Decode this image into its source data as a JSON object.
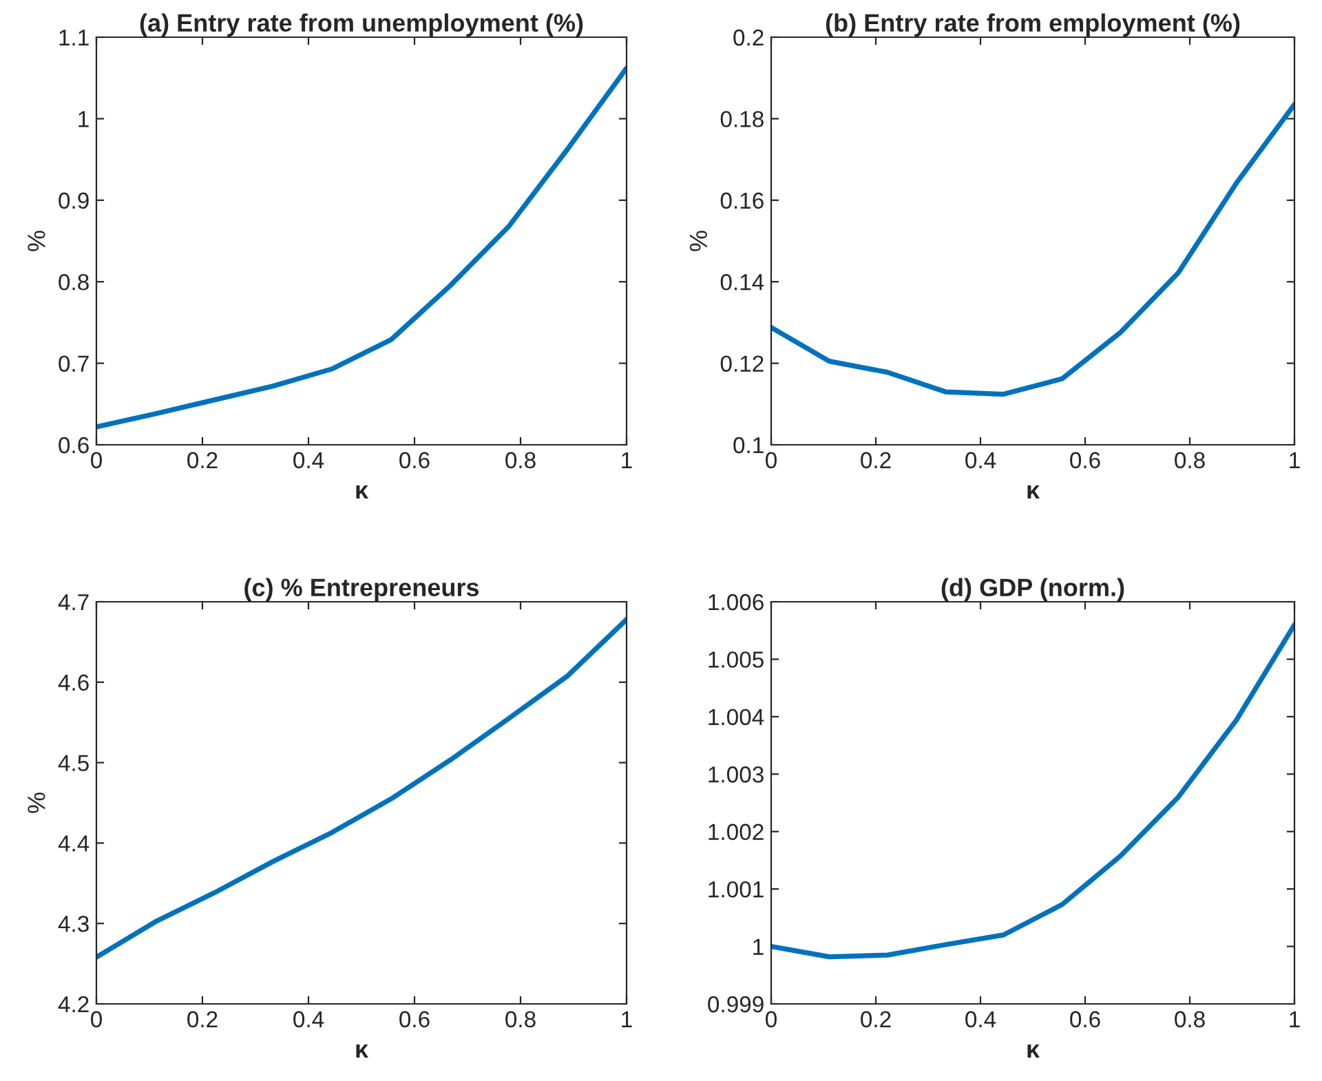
{
  "chart_data": [
    {
      "type": "line",
      "title": "(a) Entry rate from unemployment (%)",
      "xlabel": "κ",
      "ylabel": "%",
      "x": [
        0,
        0.111,
        0.222,
        0.333,
        0.444,
        0.556,
        0.667,
        0.778,
        0.889,
        1
      ],
      "xlim": [
        0,
        1
      ],
      "xticks": [
        0,
        0.2,
        0.4,
        0.6,
        0.8,
        1
      ],
      "ylim": [
        0.6,
        1.1
      ],
      "yticks": [
        0.6,
        0.7,
        0.8,
        0.9,
        1,
        1.1
      ],
      "grid": false,
      "series": [
        {
          "color": "#0072bd",
          "values": [
            0.622,
            0.638,
            0.655,
            0.672,
            0.693,
            0.729,
            0.795,
            0.868,
            0.963,
            1.062
          ]
        }
      ]
    },
    {
      "type": "line",
      "title": "(b) Entry rate from employment (%)",
      "xlabel": "κ",
      "ylabel": "%",
      "x": [
        0,
        0.111,
        0.222,
        0.333,
        0.444,
        0.556,
        0.667,
        0.778,
        0.889,
        1
      ],
      "xlim": [
        0,
        1
      ],
      "xticks": [
        0,
        0.2,
        0.4,
        0.6,
        0.8,
        1
      ],
      "ylim": [
        0.1,
        0.2
      ],
      "yticks": [
        0.1,
        0.12,
        0.14,
        0.16,
        0.18,
        0.2
      ],
      "grid": false,
      "series": [
        {
          "color": "#0072bd",
          "values": [
            0.1288,
            0.1205,
            0.1178,
            0.113,
            0.1124,
            0.1162,
            0.1275,
            0.1422,
            0.1642,
            0.1835
          ]
        }
      ]
    },
    {
      "type": "line",
      "title": "(c) % Entrepreneurs",
      "xlabel": "κ",
      "ylabel": "%",
      "x": [
        0,
        0.111,
        0.222,
        0.333,
        0.444,
        0.556,
        0.667,
        0.778,
        0.889,
        1
      ],
      "xlim": [
        0,
        1
      ],
      "xticks": [
        0,
        0.2,
        0.4,
        0.6,
        0.8,
        1
      ],
      "ylim": [
        4.2,
        4.7
      ],
      "yticks": [
        4.2,
        4.3,
        4.4,
        4.5,
        4.6,
        4.7
      ],
      "grid": false,
      "series": [
        {
          "color": "#0072bd",
          "values": [
            4.258,
            4.302,
            4.338,
            4.377,
            4.413,
            4.455,
            4.503,
            4.555,
            4.608,
            4.678
          ]
        }
      ]
    },
    {
      "type": "line",
      "title": "(d) GDP (norm.)",
      "xlabel": "κ",
      "x": [
        0,
        0.111,
        0.222,
        0.333,
        0.444,
        0.556,
        0.667,
        0.778,
        0.889,
        1
      ],
      "xlim": [
        0,
        1
      ],
      "xticks": [
        0,
        0.2,
        0.4,
        0.6,
        0.8,
        1
      ],
      "ylim": [
        0.999,
        1.006
      ],
      "yticks": [
        0.999,
        1,
        1.001,
        1.002,
        1.003,
        1.004,
        1.005,
        1.006
      ],
      "grid": false,
      "series": [
        {
          "color": "#0072bd",
          "values": [
            1.0,
            0.99982,
            0.99985,
            1.00003,
            1.0002,
            1.00073,
            1.00157,
            1.0026,
            1.00394,
            1.0056
          ]
        }
      ]
    }
  ]
}
